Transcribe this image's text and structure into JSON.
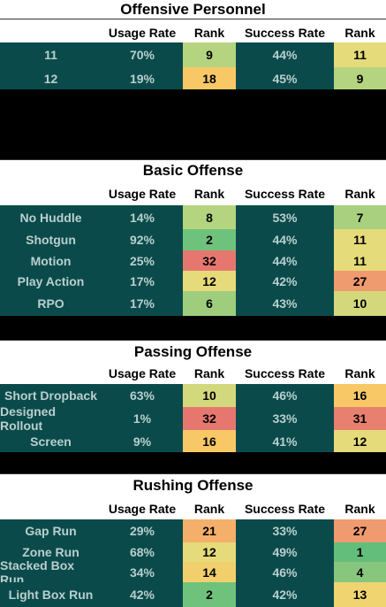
{
  "columns": {
    "usage": "Usage Rate",
    "rank": "Rank",
    "success": "Success Rate",
    "rank2": "Rank"
  },
  "colors": {
    "green": "#63be7b",
    "lightgreen": "#b5d47f",
    "yellow": "#e6db7a",
    "amber": "#f8c867",
    "orange": "#f09a6f",
    "red": "#e6776f",
    "teal": "#0b4a4a"
  },
  "sections": [
    {
      "title": "Offensive Personnel",
      "rows": [
        {
          "label": "11",
          "usage": "70%",
          "rank": "9",
          "success": "44%",
          "rank2": "11",
          "rank_color": "#b5d47f",
          "rank2_color": "#e6db7a"
        },
        {
          "label": "12",
          "usage": "19%",
          "rank": "18",
          "success": "45%",
          "rank2": "9",
          "rank_color": "#f8c867",
          "rank2_color": "#b5d47f"
        }
      ]
    },
    {
      "title": "Basic Offense",
      "rows": [
        {
          "label": "No Huddle",
          "usage": "14%",
          "rank": "8",
          "success": "53%",
          "rank2": "7",
          "rank_color": "#b5d47f",
          "rank2_color": "#a9d07e"
        },
        {
          "label": "Shotgun",
          "usage": "92%",
          "rank": "2",
          "success": "44%",
          "rank2": "11",
          "rank_color": "#6fc27c",
          "rank2_color": "#e6db7a"
        },
        {
          "label": "Motion",
          "usage": "25%",
          "rank": "32",
          "success": "44%",
          "rank2": "11",
          "rank_color": "#e6776f",
          "rank2_color": "#e6db7a"
        },
        {
          "label": "Play Action",
          "usage": "17%",
          "rank": "12",
          "success": "42%",
          "rank2": "27",
          "rank_color": "#e6db7a",
          "rank2_color": "#f09a6f"
        },
        {
          "label": "RPO",
          "usage": "17%",
          "rank": "6",
          "success": "43%",
          "rank2": "10",
          "rank_color": "#9fcd7e",
          "rank2_color": "#d4d87d"
        }
      ]
    },
    {
      "title": "Passing Offense",
      "rows": [
        {
          "label": "Short Dropback",
          "usage": "63%",
          "rank": "10",
          "success": "46%",
          "rank2": "16",
          "rank_color": "#d4d87d",
          "rank2_color": "#f8c867"
        },
        {
          "label": "Designed Rollout",
          "usage": "1%",
          "rank": "32",
          "success": "33%",
          "rank2": "31",
          "rank_color": "#e6776f",
          "rank2_color": "#e8806f"
        },
        {
          "label": "Screen",
          "usage": "9%",
          "rank": "16",
          "success": "41%",
          "rank2": "12",
          "rank_color": "#f8c867",
          "rank2_color": "#e6db7a"
        }
      ]
    },
    {
      "title": "Rushing Offense",
      "rows": [
        {
          "label": "Gap Run",
          "usage": "29%",
          "rank": "21",
          "success": "33%",
          "rank2": "27",
          "rank_color": "#f4b06a",
          "rank2_color": "#f09a6f"
        },
        {
          "label": "Zone Run",
          "usage": "68%",
          "rank": "12",
          "success": "49%",
          "rank2": "1",
          "rank_color": "#e6db7a",
          "rank2_color": "#63be7b"
        },
        {
          "label": "Stacked Box Run",
          "usage": "34%",
          "rank": "14",
          "success": "46%",
          "rank2": "4",
          "rank_color": "#f2cf6d",
          "rank2_color": "#86c77d"
        },
        {
          "label": "Light Box Run",
          "usage": "42%",
          "rank": "2",
          "success": "42%",
          "rank2": "13",
          "rank_color": "#6fc27c",
          "rank2_color": "#f0d46f"
        }
      ]
    }
  ]
}
